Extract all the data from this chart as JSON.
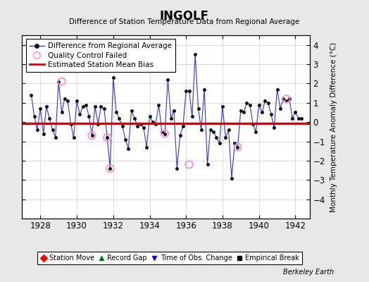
{
  "title": "INGOLF",
  "subtitle": "Difference of Station Temperature Data from Regional Average",
  "ylabel_right": "Monthly Temperature Anomaly Difference (°C)",
  "xlim": [
    1927.0,
    1942.8
  ],
  "ylim": [
    -5,
    4.5
  ],
  "yticks": [
    -4,
    -3,
    -2,
    -1,
    0,
    1,
    2,
    3,
    4
  ],
  "xticks": [
    1928,
    1930,
    1932,
    1934,
    1936,
    1938,
    1940,
    1942
  ],
  "bias_value": -0.05,
  "background_color": "#e8e8e8",
  "plot_bg_color": "#ffffff",
  "line_color": "#3333cc",
  "bias_color": "#dd0000",
  "marker_color": "#111111",
  "qc_color": "#ff88cc",
  "berkeley_earth_text": "Berkeley Earth",
  "data_x": [
    1927.5,
    1927.67,
    1927.83,
    1928.0,
    1928.17,
    1928.33,
    1928.5,
    1928.67,
    1928.83,
    1929.0,
    1929.17,
    1929.33,
    1929.5,
    1929.67,
    1929.83,
    1930.0,
    1930.17,
    1930.33,
    1930.5,
    1930.67,
    1930.83,
    1931.0,
    1931.17,
    1931.33,
    1931.5,
    1931.67,
    1931.83,
    1932.0,
    1932.17,
    1932.33,
    1932.5,
    1932.67,
    1932.83,
    1933.0,
    1933.17,
    1933.33,
    1933.5,
    1933.67,
    1933.83,
    1934.0,
    1934.17,
    1934.33,
    1934.5,
    1934.67,
    1934.83,
    1935.0,
    1935.17,
    1935.33,
    1935.5,
    1935.67,
    1935.83,
    1936.0,
    1936.17,
    1936.33,
    1936.5,
    1936.67,
    1936.83,
    1937.0,
    1937.17,
    1937.33,
    1937.5,
    1937.67,
    1937.83,
    1938.0,
    1938.17,
    1938.33,
    1938.5,
    1938.67,
    1938.83,
    1939.0,
    1939.17,
    1939.33,
    1939.5,
    1939.67,
    1939.83,
    1940.0,
    1940.17,
    1940.33,
    1940.5,
    1940.67,
    1940.83,
    1941.0,
    1941.17,
    1941.33,
    1941.5,
    1941.67,
    1941.83,
    1942.0,
    1942.17,
    1942.33
  ],
  "data_y": [
    1.4,
    0.3,
    -0.4,
    0.7,
    -0.6,
    0.8,
    0.2,
    -0.4,
    -0.8,
    2.1,
    0.5,
    1.2,
    1.1,
    -0.1,
    -0.8,
    1.1,
    0.4,
    0.8,
    0.9,
    0.3,
    -0.7,
    0.8,
    -0.1,
    0.8,
    0.7,
    -0.8,
    -2.4,
    2.3,
    0.5,
    0.2,
    -0.2,
    -0.9,
    -1.4,
    0.6,
    0.2,
    -0.2,
    -0.1,
    -0.3,
    -1.3,
    0.3,
    0.0,
    -0.1,
    0.9,
    -0.5,
    -0.6,
    2.2,
    0.2,
    0.6,
    -2.4,
    -0.7,
    -0.2,
    1.6,
    1.6,
    0.3,
    3.5,
    0.7,
    -0.4,
    1.7,
    -2.2,
    -0.4,
    -0.5,
    -0.8,
    -1.1,
    0.8,
    -0.8,
    -0.4,
    -2.9,
    -1.1,
    -1.3,
    0.6,
    0.5,
    1.0,
    0.9,
    -0.1,
    -0.5,
    0.9,
    0.5,
    1.1,
    1.0,
    0.4,
    -0.3,
    1.7,
    0.7,
    1.2,
    1.1,
    1.2,
    0.2,
    0.5,
    0.2,
    0.2
  ],
  "qc_failed_x": [
    1929.17,
    1930.83,
    1931.67,
    1931.83,
    1934.83,
    1936.17,
    1938.83,
    1941.5
  ],
  "qc_failed_y": [
    2.1,
    -0.7,
    -0.8,
    -2.4,
    -0.6,
    -2.2,
    -1.3,
    1.2
  ]
}
